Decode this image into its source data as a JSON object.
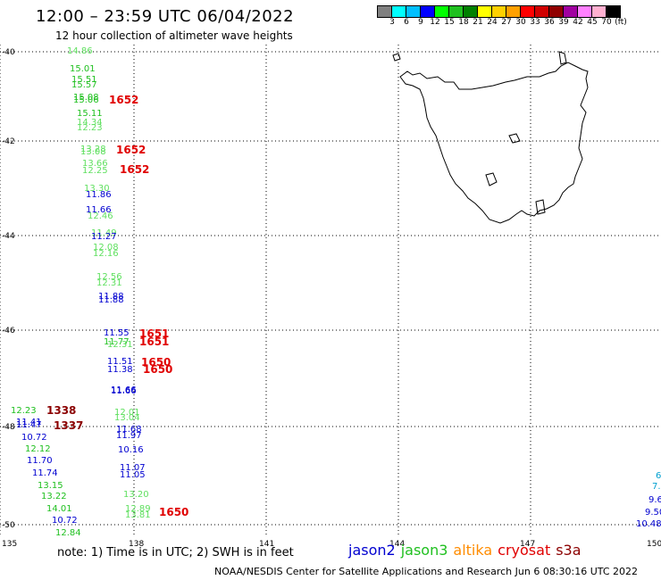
{
  "header": {
    "title": "12:00 – 23:59 UTC 06/04/2022",
    "subtitle": "12 hour collection of altimeter wave heights"
  },
  "color_legend": {
    "colors": [
      "#808080",
      "#00ffff",
      "#00bfff",
      "#0000ff",
      "#00ff00",
      "#20c020",
      "#008000",
      "#ffff00",
      "#ffd000",
      "#ffa000",
      "#ff0000",
      "#d00000",
      "#900000",
      "#a000a0",
      "#ff80ff",
      "#ffb0d0",
      "#000000"
    ],
    "labels": [
      "3",
      "6",
      "9",
      "12",
      "15",
      "18",
      "21",
      "24",
      "27",
      "30",
      "33",
      "36",
      "39",
      "42",
      "45",
      "70",
      "(ft)"
    ]
  },
  "axes": {
    "lat_labels": [
      "-40",
      "-42",
      "-44",
      "-46",
      "-48",
      "-50"
    ],
    "lon_labels": [
      "135",
      "138",
      "141",
      "144",
      "147",
      "150"
    ]
  },
  "sat_colors": {
    "jason2": "#0000d0",
    "jason3": "#20c020",
    "jason3_light": "#60e060",
    "altika": "#ff8c00",
    "cryosat": "#e00000",
    "s3a": "#8b0000",
    "light_blue": "#00a0d0"
  },
  "observations": [
    {
      "t": "14.86",
      "c": "jason3_light"
    },
    {
      "t": "15.01",
      "c": "jason3"
    },
    {
      "t": "15.51",
      "c": "jason3"
    },
    {
      "t": "15.57",
      "c": "jason3"
    },
    {
      "t": "15.08",
      "c": "jason3"
    },
    {
      "t": "15.06",
      "c": "jason3"
    },
    {
      "t": "15.11",
      "c": "jason3"
    },
    {
      "t": "14.34",
      "c": "jason3_light"
    },
    {
      "t": "12.23",
      "c": "jason3_light"
    },
    {
      "t": "13.28",
      "c": "jason3_light"
    },
    {
      "t": "13.08",
      "c": "jason3_light"
    },
    {
      "t": "13.66",
      "c": "jason3_light"
    },
    {
      "t": "12.25",
      "c": "jason3_light"
    },
    {
      "t": "13.30",
      "c": "jason3_light"
    },
    {
      "t": "11.86",
      "c": "jason2"
    },
    {
      "t": "11.66",
      "c": "jason2"
    },
    {
      "t": "12.46",
      "c": "jason3_light"
    },
    {
      "t": "11.49",
      "c": "jason3_light"
    },
    {
      "t": "11.27",
      "c": "jason2"
    },
    {
      "t": "12.08",
      "c": "jason3_light"
    },
    {
      "t": "12.16",
      "c": "jason3_light"
    },
    {
      "t": "12.56",
      "c": "jason3_light"
    },
    {
      "t": "12.31",
      "c": "jason3_light"
    },
    {
      "t": "11.88",
      "c": "jason2"
    },
    {
      "t": "11.88",
      "c": "jason2"
    },
    {
      "t": "11.55",
      "c": "jason2"
    },
    {
      "t": "11.77",
      "c": "jason3"
    },
    {
      "t": "12.31",
      "c": "jason3_light"
    },
    {
      "t": "11.51",
      "c": "jason2"
    },
    {
      "t": "11.38",
      "c": "jason2"
    },
    {
      "t": "11.66",
      "c": "jason2"
    },
    {
      "t": "11.66",
      "c": "jason2"
    },
    {
      "t": "12.23",
      "c": "jason3"
    },
    {
      "t": "12.01",
      "c": "jason3_light"
    },
    {
      "t": "13.04",
      "c": "jason3_light"
    },
    {
      "t": "11.41",
      "c": "jason2"
    },
    {
      "t": "11.47",
      "c": "jason2"
    },
    {
      "t": "11.68",
      "c": "jason2"
    },
    {
      "t": "10.72",
      "c": "jason2"
    },
    {
      "t": "11.97",
      "c": "jason2"
    },
    {
      "t": "12.12",
      "c": "jason3"
    },
    {
      "t": "10.16",
      "c": "jason2"
    },
    {
      "t": "11.70",
      "c": "jason2"
    },
    {
      "t": "11.07",
      "c": "jason2"
    },
    {
      "t": "11.74",
      "c": "jason2"
    },
    {
      "t": "11.05",
      "c": "jason2"
    },
    {
      "t": "13.15",
      "c": "jason3"
    },
    {
      "t": "13.20",
      "c": "jason3_light"
    },
    {
      "t": "13.22",
      "c": "jason3"
    },
    {
      "t": "14.01",
      "c": "jason3"
    },
    {
      "t": "12.89",
      "c": "jason3_light"
    },
    {
      "t": "13.81",
      "c": "jason3_light"
    },
    {
      "t": "10.72",
      "c": "jason2"
    },
    {
      "t": "12.84",
      "c": "jason3"
    },
    {
      "t": "6",
      "c": "light_blue"
    },
    {
      "t": "7.4",
      "c": "light_blue"
    },
    {
      "t": "9.6",
      "c": "jason2"
    },
    {
      "t": "9.50",
      "c": "jason2"
    },
    {
      "t": "10.48",
      "c": "jason2"
    }
  ],
  "time_labels": [
    {
      "t": "1652",
      "c": "cryosat"
    },
    {
      "t": "1652",
      "c": "cryosat"
    },
    {
      "t": "1652",
      "c": "cryosat"
    },
    {
      "t": "1651",
      "c": "cryosat"
    },
    {
      "t": "1651",
      "c": "cryosat"
    },
    {
      "t": "1650",
      "c": "cryosat"
    },
    {
      "t": "1650",
      "c": "cryosat"
    },
    {
      "t": "1338",
      "c": "s3a"
    },
    {
      "t": "1337",
      "c": "s3a"
    },
    {
      "t": "1650",
      "c": "cryosat"
    }
  ],
  "footer": {
    "note": "note:  1) Time is in UTC;  2) SWH is in feet",
    "satellites": [
      {
        "name": "jason2",
        "c": "jason2"
      },
      {
        "name": "jason3",
        "c": "jason3"
      },
      {
        "name": "altika",
        "c": "altika"
      },
      {
        "name": "cryosat",
        "c": "cryosat"
      },
      {
        "name": "s3a",
        "c": "s3a"
      }
    ],
    "credit": "NOAA/NESDIS Center for Satellite Applications and Research    Jun  6 08:30:16 UTC 2022"
  }
}
